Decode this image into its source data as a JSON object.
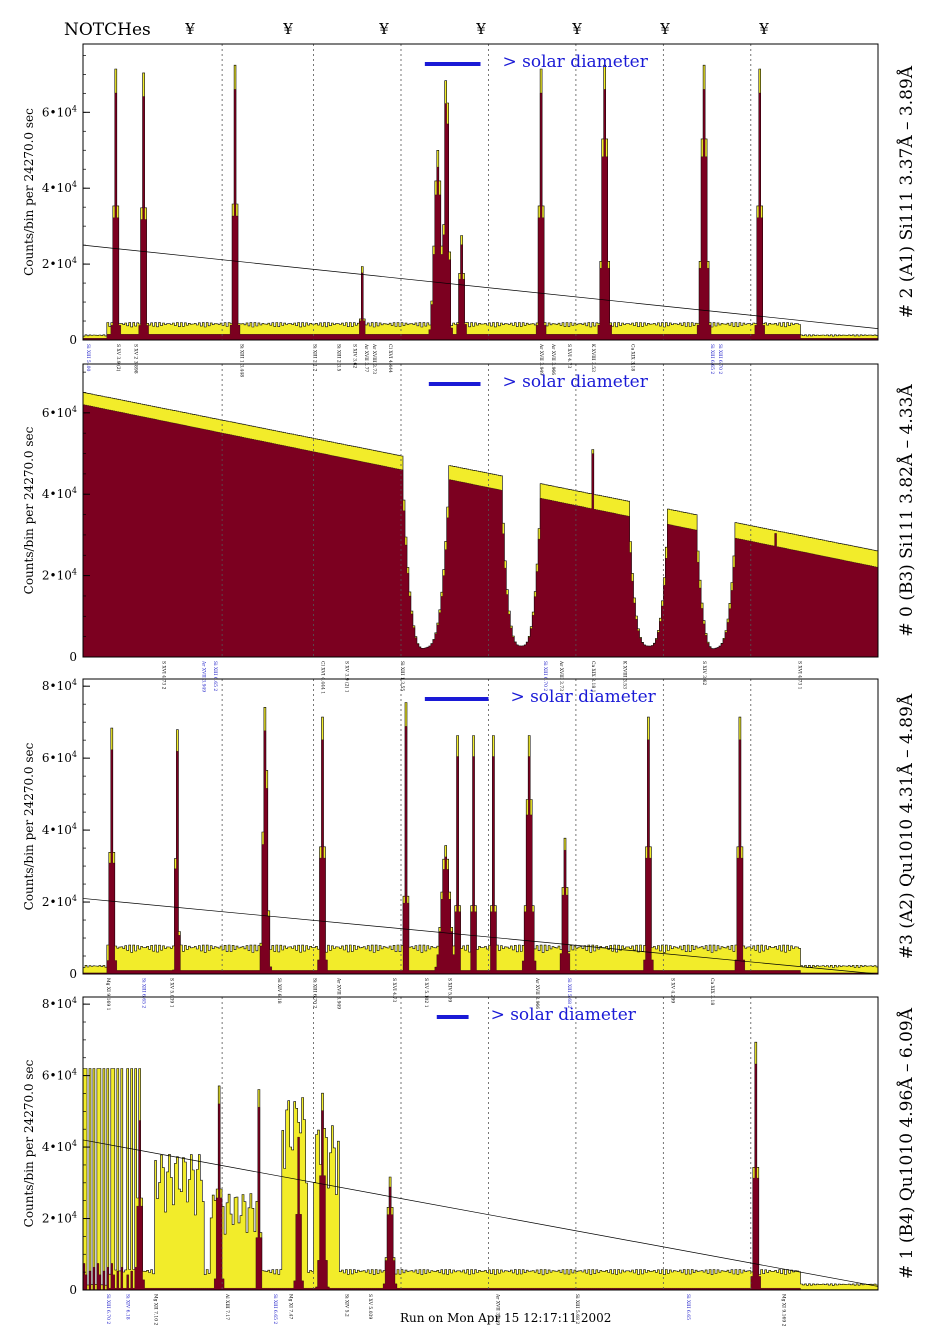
{
  "header": {
    "notches_title": "NOTCHes",
    "notch_marker": "¥",
    "notch_positions": [
      3.55,
      3.7,
      3.85,
      4.0,
      4.15,
      4.3,
      4.45
    ]
  },
  "footer": {
    "run_text": "Run on Mon Apr 15 12:17:11 2002"
  },
  "colors": {
    "model": "#f2ec2a",
    "observed": "#7c0020",
    "solar_bar": "#1a1ad6",
    "label_blue": "#1c1cc8",
    "axis": "#000000"
  },
  "chart_data": [
    {
      "type": "area",
      "panel_title": "# 2 (A1) Si111  3.37Å – 3.89Å",
      "ylabel": "Counts/bin per  24270.0 sec",
      "yticks": [
        {
          "value": 0,
          "label": "0"
        },
        {
          "value": 20000,
          "label": "2•10"
        },
        {
          "value": 40000,
          "label": "4•10"
        },
        {
          "value": 60000,
          "label": "6•10"
        }
      ],
      "tick_exp": "4",
      "ylim": [
        0,
        78000
      ],
      "solar_label": "> solar diameter",
      "solar_bar": [
        0.43,
        0.5
      ],
      "notch_lines": [
        0.175,
        0.29,
        0.4,
        0.51,
        0.62,
        0.73,
        0.84
      ],
      "baseline": {
        "model": 4000,
        "observed": 1500
      },
      "peaks": [
        {
          "x": 0.04,
          "height": 70000,
          "width": 0.004
        },
        {
          "x": 0.075,
          "height": 69000,
          "width": 0.004
        },
        {
          "x": 0.19,
          "height": 71000,
          "width": 0.004
        },
        {
          "x": 0.35,
          "height": 19000,
          "width": 0.003
        },
        {
          "x": 0.445,
          "height": 49000,
          "width": 0.008
        },
        {
          "x": 0.456,
          "height": 72000,
          "width": 0.005
        },
        {
          "x": 0.475,
          "height": 27000,
          "width": 0.005
        },
        {
          "x": 0.575,
          "height": 70000,
          "width": 0.004
        },
        {
          "x": 0.655,
          "height": 71000,
          "width": 0.006
        },
        {
          "x": 0.78,
          "height": 71000,
          "width": 0.006
        },
        {
          "x": 0.85,
          "height": 70000,
          "width": 0.004
        }
      ],
      "trend": [
        25000,
        3000
      ],
      "line_labels": [
        {
          "x": 0.005,
          "text": "Si XIII 5 .00",
          "blue": true
        },
        {
          "x": 0.043,
          "text": "S XV 3.9 (2)"
        },
        {
          "x": 0.065,
          "text": "S XV 2 3.898"
        },
        {
          "x": 0.198,
          "text": "Si XIII 1 3.448"
        },
        {
          "x": 0.29,
          "text": "Si XIII 2 1.7"
        },
        {
          "x": 0.32,
          "text": "Si XIII 2 3.5"
        },
        {
          "x": 0.34,
          "text": "S XIV 3.62"
        },
        {
          "x": 0.355,
          "text": "Ar XVII 3.77"
        },
        {
          "x": 0.365,
          "text": "Ar XVIII 3.73"
        },
        {
          "x": 0.385,
          "text": "Cl XVI 4.444"
        },
        {
          "x": 0.575,
          "text": "Ar XVII 3.949"
        },
        {
          "x": 0.59,
          "text": "Ar XVII 3.966"
        },
        {
          "x": 0.61,
          "text": "S XVI 4.73"
        },
        {
          "x": 0.64,
          "text": "K XVIII 3.53"
        },
        {
          "x": 0.69,
          "text": "Ca XIX 3.18"
        },
        {
          "x": 0.79,
          "text": "Si XIII 6.65 2",
          "blue": true
        },
        {
          "x": 0.8,
          "text": "Si XIII 6.70 2",
          "blue": true
        }
      ]
    },
    {
      "type": "area",
      "panel_title": "# 0 (B3) Si111  3.82Å – 4.33Å",
      "ylabel": "Counts/bin per  24270.0 sec",
      "yticks": [
        {
          "value": 0,
          "label": "0"
        },
        {
          "value": 20000,
          "label": "2•10"
        },
        {
          "value": 40000,
          "label": "4•10"
        },
        {
          "value": 60000,
          "label": "6•10"
        }
      ],
      "tick_exp": "4",
      "ylim": [
        0,
        72000
      ],
      "solar_label": "> solar diameter",
      "solar_bar": [
        0.435,
        0.5
      ],
      "notch_lines": [
        0.175,
        0.29,
        0.4,
        0.51,
        0.62,
        0.73,
        0.84
      ],
      "diagonal": {
        "model": [
          65000,
          26000
        ],
        "observed": [
          62000,
          22000
        ]
      },
      "dips": [
        {
          "x": 0.43,
          "width": 0.03,
          "depth": 31000
        },
        {
          "x": 0.55,
          "width": 0.025,
          "depth": 28000
        },
        {
          "x": 0.71,
          "width": 0.025,
          "depth": 27000
        },
        {
          "x": 0.795,
          "width": 0.025,
          "depth": 28000
        }
      ],
      "spikes": [
        {
          "x": 0.64,
          "height": 51000,
          "width": 0.004
        },
        {
          "x": 0.87,
          "height": 31000,
          "width": 0.003
        }
      ],
      "trend": null,
      "line_labels": [
        {
          "x": 0.1,
          "text": "S XVI 4.73 2"
        },
        {
          "x": 0.15,
          "text": "Ar XVII 3.949",
          "blue": true
        },
        {
          "x": 0.165,
          "text": "Si XIII 6.65 2",
          "blue": true
        },
        {
          "x": 0.3,
          "text": "Cl XVI 4.444 1"
        },
        {
          "x": 0.33,
          "text": "S XV 3.9 (2) 1"
        },
        {
          "x": 0.4,
          "text": "Si XIII 1 3.55"
        },
        {
          "x": 0.58,
          "text": "Si XIII 6.70 2",
          "blue": true
        },
        {
          "x": 0.6,
          "text": "Ar XVIII 3.73 1"
        },
        {
          "x": 0.64,
          "text": "Ca XIX 3.18 1"
        },
        {
          "x": 0.68,
          "text": "K XVIII 3.53"
        },
        {
          "x": 0.78,
          "text": "S XIV 3.62"
        },
        {
          "x": 0.9,
          "text": "S XVI 4.73 1"
        }
      ]
    },
    {
      "type": "area",
      "panel_title": "#3 (A2) Qu1010  4.31Å – 4.89Å",
      "ylabel": "Counts/bin per  24270.0 sec",
      "yticks": [
        {
          "value": 0,
          "label": "0"
        },
        {
          "value": 20000,
          "label": "2•10"
        },
        {
          "value": 40000,
          "label": "4•10"
        },
        {
          "value": 60000,
          "label": "6•10"
        },
        {
          "value": 80000,
          "label": "8•10"
        }
      ],
      "tick_exp": "4",
      "ylim": [
        0,
        82000
      ],
      "solar_label": "> solar diameter",
      "solar_bar": [
        0.43,
        0.51
      ],
      "notch_lines": [
        0.175,
        0.29,
        0.4,
        0.51,
        0.62,
        0.73,
        0.84
      ],
      "baseline": {
        "model": 7000,
        "observed": 1000
      },
      "peaks": [
        {
          "x": 0.035,
          "height": 67000,
          "width": 0.004
        },
        {
          "x": 0.117,
          "height": 70000,
          "width": 0.003
        },
        {
          "x": 0.228,
          "height": 74000,
          "width": 0.005
        },
        {
          "x": 0.3,
          "height": 70000,
          "width": 0.004
        },
        {
          "x": 0.405,
          "height": 74000,
          "width": 0.003
        },
        {
          "x": 0.455,
          "height": 35000,
          "width": 0.01
        },
        {
          "x": 0.47,
          "height": 65000,
          "width": 0.003
        },
        {
          "x": 0.49,
          "height": 65000,
          "width": 0.003
        },
        {
          "x": 0.515,
          "height": 65000,
          "width": 0.003
        },
        {
          "x": 0.56,
          "height": 65000,
          "width": 0.006
        },
        {
          "x": 0.605,
          "height": 37000,
          "width": 0.005
        },
        {
          "x": 0.71,
          "height": 70000,
          "width": 0.004
        },
        {
          "x": 0.825,
          "height": 70000,
          "width": 0.004
        }
      ],
      "trend": [
        21000,
        0
      ],
      "line_labels": [
        {
          "x": 0.03,
          "text": "Mg XI 9.169 1"
        },
        {
          "x": 0.075,
          "text": "Si XIII 6.65 2",
          "blue": true
        },
        {
          "x": 0.11,
          "text": "S XV 5.039 1"
        },
        {
          "x": 0.245,
          "text": "Si XIV 6.18"
        },
        {
          "x": 0.29,
          "text": "Si XIII 6.70 2"
        },
        {
          "x": 0.32,
          "text": "Ar XVII 3.949"
        },
        {
          "x": 0.39,
          "text": "S XVI 4.73"
        },
        {
          "x": 0.43,
          "text": "S XV 5.102 1"
        },
        {
          "x": 0.46,
          "text": "S XIV 5.09"
        },
        {
          "x": 0.57,
          "text": "Ar XVII 3.966"
        },
        {
          "x": 0.61,
          "text": "Si XIII 5.68 2",
          "blue": true
        },
        {
          "x": 0.74,
          "text": "S XV 4.299"
        },
        {
          "x": 0.79,
          "text": "Ca XIX 3.18"
        }
      ]
    },
    {
      "type": "area",
      "panel_title": "# 1 (B4) Qu1010 4.96Å – 6.09Å",
      "ylabel": "Counts/bin per  24270.0 sec",
      "yticks": [
        {
          "value": 0,
          "label": "0"
        },
        {
          "value": 20000,
          "label": "2•10"
        },
        {
          "value": 40000,
          "label": "4•10"
        },
        {
          "value": 60000,
          "label": "6•10"
        },
        {
          "value": 80000,
          "label": "8•10"
        }
      ],
      "tick_exp": "4",
      "ylim": [
        0,
        82000
      ],
      "solar_label": "> solar diameter",
      "solar_bar": [
        0.445,
        0.485
      ],
      "notch_lines": [
        0.175,
        0.29,
        0.4,
        0.51,
        0.62,
        0.73,
        0.84
      ],
      "baseline": {
        "model": 5000,
        "observed": 500
      },
      "comb": {
        "start": 0.0,
        "end": 0.07,
        "count": 12,
        "height": 62000
      },
      "blocks": [
        {
          "x0": 0.09,
          "x1": 0.15,
          "height": 38000
        },
        {
          "x0": 0.16,
          "x1": 0.22,
          "height": 27000
        },
        {
          "x0": 0.25,
          "x1": 0.28,
          "height": 54000
        },
        {
          "x0": 0.29,
          "x1": 0.32,
          "height": 46000
        }
      ],
      "peaks": [
        {
          "x": 0.07,
          "height": 51000,
          "width": 0.004
        },
        {
          "x": 0.17,
          "height": 56000,
          "width": 0.004
        },
        {
          "x": 0.22,
          "height": 55000,
          "width": 0.003
        },
        {
          "x": 0.27,
          "height": 46000,
          "width": 0.004
        },
        {
          "x": 0.3,
          "height": 54000,
          "width": 0.005
        },
        {
          "x": 0.385,
          "height": 31000,
          "width": 0.006
        },
        {
          "x": 0.845,
          "height": 68000,
          "width": 0.004
        }
      ],
      "trend": [
        42000,
        1000
      ],
      "line_labels": [
        {
          "x": 0.03,
          "text": "Si XIII 6.70 2",
          "blue": true
        },
        {
          "x": 0.055,
          "text": "Si XIV 6.18",
          "blue": true
        },
        {
          "x": 0.09,
          "text": "Mg XII 7.10 2"
        },
        {
          "x": 0.18,
          "text": "Al XIII 7.17"
        },
        {
          "x": 0.24,
          "text": "Si XIII 6.65 2",
          "blue": true
        },
        {
          "x": 0.26,
          "text": "Mg XI 7.47"
        },
        {
          "x": 0.33,
          "text": "Si XIV 5.2"
        },
        {
          "x": 0.36,
          "text": "S XV 5.039"
        },
        {
          "x": 0.52,
          "text": "Ar XVII 3.949"
        },
        {
          "x": 0.62,
          "text": "Si XIII 5.68 2"
        },
        {
          "x": 0.76,
          "text": "Si XIII 6.65",
          "blue": true
        },
        {
          "x": 0.88,
          "text": "Mg XI 9.169 2"
        }
      ]
    }
  ]
}
